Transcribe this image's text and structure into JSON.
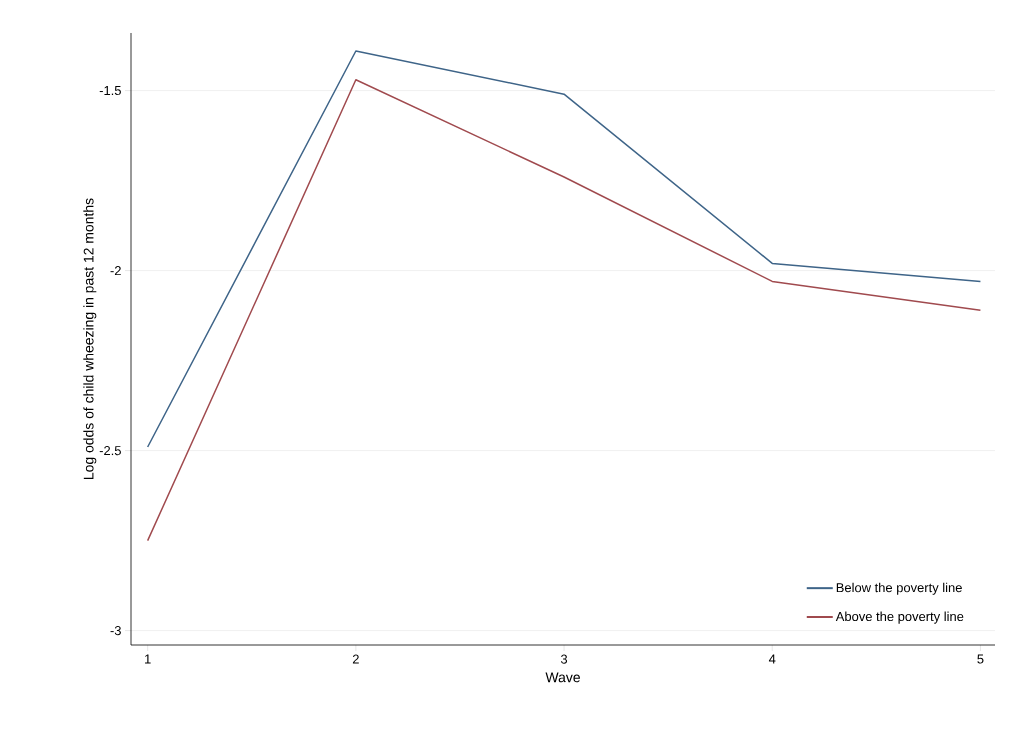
{
  "chart_data": {
    "type": "line",
    "xlabel": "Wave",
    "ylabel": "Log odds of child wheezing in past 12 months",
    "x": [
      1,
      2,
      3,
      4,
      5
    ],
    "series": [
      {
        "name": "Below the poverty line",
        "color": "#3e6488",
        "values": [
          -2.49,
          -1.39,
          -1.51,
          -1.98,
          -2.03
        ]
      },
      {
        "name": "Above the poverty line",
        "color": "#a04a4e",
        "values": [
          -2.75,
          -1.47,
          -1.74,
          -2.03,
          -2.11
        ]
      }
    ],
    "xlim": [
      0.92,
      5.07
    ],
    "ylim": [
      -3.04,
      -1.34
    ],
    "xticks": [
      1,
      2,
      3,
      4,
      5
    ],
    "yticks": [
      {
        "value": -3,
        "label": "-3"
      },
      {
        "value": -2.5,
        "label": "-2.5"
      },
      {
        "value": -2,
        "label": "-2"
      },
      {
        "value": -1.5,
        "label": "-1.5"
      }
    ],
    "grid": "y",
    "legend": "bottom right",
    "marker": "none",
    "line_style": "solid"
  }
}
